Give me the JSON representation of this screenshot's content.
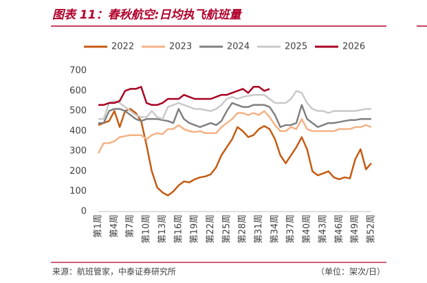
{
  "chart_data": {
    "type": "line",
    "title": "图表 11：春秋航空:日均执飞航班量",
    "source": "来源：航班管家，中泰证券研究所",
    "unit": "（单位：架次/日）",
    "categories": [
      "第1周",
      null,
      null,
      "第4周",
      null,
      null,
      "第7周",
      null,
      null,
      "第10周",
      null,
      null,
      "第13周",
      null,
      null,
      "第16周",
      null,
      null,
      "第19周",
      null,
      null,
      "第22周",
      null,
      null,
      "第25周",
      null,
      null,
      "第28周",
      null,
      null,
      "第31周",
      null,
      null,
      "第34周",
      null,
      null,
      "第37周",
      null,
      null,
      "第40周",
      null,
      null,
      "第43周",
      null,
      null,
      "第46周",
      null,
      null,
      "第49周",
      null,
      null,
      "第52周"
    ],
    "ylim": [
      0,
      700
    ],
    "yticks": [
      0,
      100,
      200,
      300,
      400,
      500,
      600,
      700
    ],
    "grid": false,
    "legend": "top",
    "series": [
      {
        "name": "2022",
        "color": "#c55a11",
        "values": [
          430,
          440,
          450,
          500,
          420,
          500,
          510,
          490,
          450,
          330,
          200,
          120,
          95,
          80,
          100,
          130,
          150,
          145,
          160,
          170,
          175,
          185,
          220,
          280,
          320,
          360,
          420,
          400,
          370,
          380,
          410,
          425,
          410,
          360,
          280,
          240,
          280,
          320,
          370,
          310,
          200,
          180,
          190,
          200,
          170,
          160,
          170,
          165,
          260,
          310,
          210,
          240
        ]
      },
      {
        "name": "2023",
        "color": "#f4b183",
        "values": [
          290,
          340,
          340,
          350,
          370,
          375,
          380,
          380,
          380,
          360,
          380,
          390,
          385,
          410,
          410,
          430,
          410,
          400,
          395,
          400,
          390,
          390,
          390,
          420,
          440,
          460,
          490,
          490,
          480,
          490,
          480,
          500,
          470,
          430,
          400,
          400,
          420,
          410,
          460,
          410,
          400,
          400,
          400,
          400,
          400,
          410,
          410,
          410,
          420,
          420,
          430,
          420
        ]
      },
      {
        "name": "2024",
        "color": "#7f7f7f",
        "values": [
          440,
          440,
          500,
          510,
          510,
          500,
          480,
          460,
          450,
          460,
          460,
          460,
          455,
          450,
          440,
          510,
          460,
          440,
          430,
          420,
          430,
          440,
          430,
          450,
          500,
          540,
          530,
          520,
          520,
          530,
          530,
          530,
          520,
          480,
          420,
          430,
          430,
          440,
          530,
          460,
          440,
          420,
          430,
          440,
          440,
          445,
          450,
          455,
          455,
          460,
          460,
          460
        ]
      },
      {
        "name": "2025",
        "color": "#c9c9c9",
        "values": [
          460,
          460,
          540,
          550,
          540,
          520,
          500,
          480,
          470,
          470,
          500,
          470,
          460,
          520,
          530,
          540,
          530,
          520,
          510,
          510,
          505,
          500,
          510,
          530,
          560,
          570,
          560,
          570,
          575,
          580,
          580,
          580,
          560,
          540,
          540,
          540,
          560,
          600,
          590,
          540,
          510,
          500,
          500,
          490,
          500,
          500,
          500,
          500,
          500,
          505,
          510,
          510
        ]
      },
      {
        "name": "2026",
        "color": "#a50021",
        "values": [
          530,
          530,
          540,
          540,
          550,
          600,
          610,
          610,
          620,
          540,
          530,
          530,
          540,
          560,
          560,
          560,
          580,
          570,
          560,
          560,
          560,
          560,
          570,
          580,
          580,
          590,
          600,
          610,
          590,
          620,
          620,
          600,
          610,
          null,
          null,
          null,
          null,
          null,
          null,
          null,
          null,
          null,
          null,
          null,
          null,
          null,
          null,
          null,
          null,
          null,
          null,
          null
        ]
      }
    ]
  }
}
